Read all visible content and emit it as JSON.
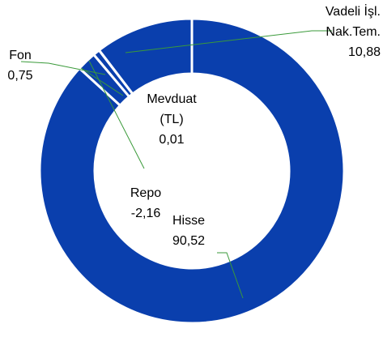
{
  "chart_data": {
    "type": "donut",
    "categories": [
      "Hisse",
      "Repo",
      "Fon",
      "Mevduat (TL)",
      "Vadeli İşl. Nak.Tem."
    ],
    "values": [
      90.52,
      -2.16,
      0.75,
      0.01,
      10.88
    ],
    "value_labels": [
      "90,52",
      "-2,16",
      "0,75",
      "0,01",
      "10,88"
    ],
    "color": "#0a3fad"
  }
}
